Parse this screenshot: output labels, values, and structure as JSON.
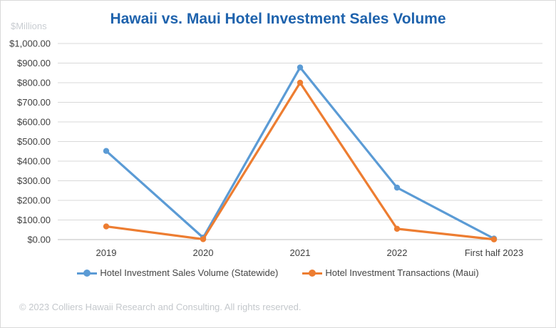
{
  "chart_data": {
    "type": "line",
    "title": "Hawaii vs. Maui Hotel Investment Sales Volume",
    "unit_label": "$Millions",
    "categories": [
      "2019",
      "2020",
      "2021",
      "2022",
      "First half 2023"
    ],
    "ylim": [
      0,
      1000
    ],
    "yticks": [
      "$0.00",
      "$100.00",
      "$200.00",
      "$300.00",
      "$400.00",
      "$500.00",
      "$600.00",
      "$700.00",
      "$800.00",
      "$900.00",
      "$1,000.00"
    ],
    "ytick_values": [
      0,
      100,
      200,
      300,
      400,
      500,
      600,
      700,
      800,
      900,
      1000
    ],
    "grid": true,
    "legend_position": "bottom",
    "series": [
      {
        "name": "Hotel Investment Sales Volume (Statewide)",
        "color": "#5b9bd5",
        "values": [
          452,
          10,
          878,
          265,
          5
        ]
      },
      {
        "name": "Hotel Investment Transactions (Maui)",
        "color": "#ed7d31",
        "values": [
          67,
          2,
          800,
          55,
          1
        ]
      }
    ]
  },
  "footer": "© 2023 Colliers Hawaii Research and Consulting. All rights reserved."
}
